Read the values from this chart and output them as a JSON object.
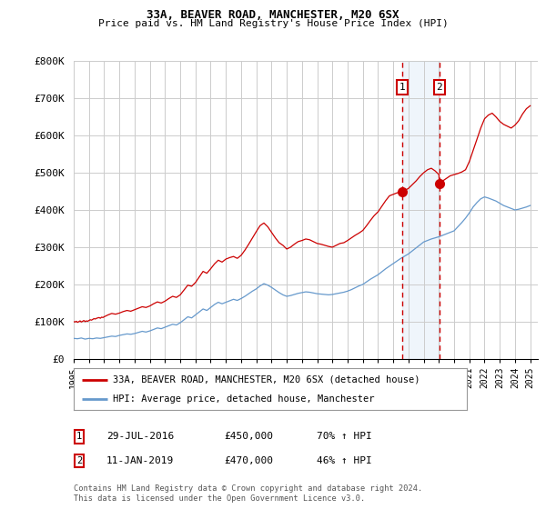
{
  "title1": "33A, BEAVER ROAD, MANCHESTER, M20 6SX",
  "title2": "Price paid vs. HM Land Registry's House Price Index (HPI)",
  "ylabel_ticks": [
    "£0",
    "£100K",
    "£200K",
    "£300K",
    "£400K",
    "£500K",
    "£600K",
    "£700K",
    "£800K"
  ],
  "ytick_values": [
    0,
    100000,
    200000,
    300000,
    400000,
    500000,
    600000,
    700000,
    800000
  ],
  "ylim": [
    0,
    800000
  ],
  "xlim_start": 1995.0,
  "xlim_end": 2025.5,
  "line1_color": "#cc0000",
  "line2_color": "#6699cc",
  "vline_color": "#cc0000",
  "vline1_x": 2016.57,
  "vline2_x": 2019.03,
  "marker1_price": 450000,
  "marker2_price": 470000,
  "label1": "33A, BEAVER ROAD, MANCHESTER, M20 6SX (detached house)",
  "label2": "HPI: Average price, detached house, Manchester",
  "trans1_num": "1",
  "trans1_date": "29-JUL-2016",
  "trans1_price": "£450,000",
  "trans1_hpi": "70% ↑ HPI",
  "trans2_num": "2",
  "trans2_date": "11-JAN-2019",
  "trans2_price": "£470,000",
  "trans2_hpi": "46% ↑ HPI",
  "footer": "Contains HM Land Registry data © Crown copyright and database right 2024.\nThis data is licensed under the Open Government Licence v3.0.",
  "bg_color": "#ffffff",
  "grid_color": "#cccccc",
  "highlight_bg": "#ddeeff",
  "red_x": [
    1995.0,
    1995.08,
    1995.17,
    1995.25,
    1995.33,
    1995.42,
    1995.5,
    1995.58,
    1995.67,
    1995.75,
    1995.83,
    1995.92,
    1996.0,
    1996.08,
    1996.17,
    1996.25,
    1996.33,
    1996.42,
    1996.5,
    1996.58,
    1996.67,
    1996.75,
    1996.83,
    1996.92,
    1997.0,
    1997.25,
    1997.5,
    1997.75,
    1998.0,
    1998.25,
    1998.5,
    1998.75,
    1999.0,
    1999.25,
    1999.5,
    1999.75,
    2000.0,
    2000.25,
    2000.5,
    2000.75,
    2001.0,
    2001.25,
    2001.5,
    2001.75,
    2002.0,
    2002.25,
    2002.5,
    2002.75,
    2003.0,
    2003.25,
    2003.5,
    2003.75,
    2004.0,
    2004.25,
    2004.5,
    2004.75,
    2005.0,
    2005.25,
    2005.5,
    2005.75,
    2006.0,
    2006.25,
    2006.5,
    2006.75,
    2007.0,
    2007.25,
    2007.5,
    2007.75,
    2008.0,
    2008.25,
    2008.5,
    2008.75,
    2009.0,
    2009.25,
    2009.5,
    2009.75,
    2010.0,
    2010.25,
    2010.5,
    2010.75,
    2011.0,
    2011.25,
    2011.5,
    2011.75,
    2012.0,
    2012.25,
    2012.5,
    2012.75,
    2013.0,
    2013.25,
    2013.5,
    2013.75,
    2014.0,
    2014.25,
    2014.5,
    2014.75,
    2015.0,
    2015.25,
    2015.5,
    2015.75,
    2016.0,
    2016.25,
    2016.5,
    2016.57,
    2016.75,
    2017.0,
    2017.25,
    2017.5,
    2017.75,
    2018.0,
    2018.25,
    2018.5,
    2018.75,
    2019.0,
    2019.03,
    2019.25,
    2019.5,
    2019.75,
    2020.0,
    2020.25,
    2020.5,
    2020.75,
    2021.0,
    2021.25,
    2021.5,
    2021.75,
    2022.0,
    2022.25,
    2022.5,
    2022.75,
    2023.0,
    2023.25,
    2023.5,
    2023.75,
    2024.0,
    2024.25,
    2024.5,
    2024.75,
    2025.0
  ],
  "red_y": [
    100000,
    99000,
    101000,
    98000,
    100000,
    102000,
    99000,
    101000,
    103000,
    100000,
    102000,
    101000,
    103000,
    105000,
    104000,
    106000,
    108000,
    107000,
    109000,
    110000,
    111000,
    109000,
    112000,
    111000,
    113000,
    118000,
    122000,
    120000,
    123000,
    127000,
    130000,
    128000,
    132000,
    136000,
    140000,
    138000,
    142000,
    148000,
    153000,
    150000,
    155000,
    162000,
    168000,
    165000,
    172000,
    185000,
    198000,
    195000,
    205000,
    220000,
    235000,
    230000,
    242000,
    255000,
    265000,
    260000,
    268000,
    272000,
    275000,
    270000,
    278000,
    292000,
    308000,
    325000,
    342000,
    358000,
    365000,
    355000,
    340000,
    325000,
    312000,
    305000,
    295000,
    300000,
    308000,
    315000,
    318000,
    322000,
    320000,
    315000,
    310000,
    308000,
    305000,
    302000,
    300000,
    305000,
    310000,
    312000,
    318000,
    325000,
    332000,
    338000,
    345000,
    358000,
    372000,
    385000,
    395000,
    410000,
    425000,
    438000,
    442000,
    446000,
    449000,
    450000,
    452000,
    458000,
    468000,
    478000,
    490000,
    500000,
    508000,
    512000,
    505000,
    495000,
    470000,
    478000,
    485000,
    492000,
    495000,
    498000,
    502000,
    508000,
    530000,
    560000,
    590000,
    620000,
    645000,
    655000,
    660000,
    650000,
    638000,
    630000,
    625000,
    620000,
    628000,
    640000,
    658000,
    672000,
    680000
  ],
  "blue_x": [
    1995.0,
    1995.25,
    1995.5,
    1995.75,
    1996.0,
    1996.25,
    1996.5,
    1996.75,
    1997.0,
    1997.25,
    1997.5,
    1997.75,
    1998.0,
    1998.25,
    1998.5,
    1998.75,
    1999.0,
    1999.25,
    1999.5,
    1999.75,
    2000.0,
    2000.25,
    2000.5,
    2000.75,
    2001.0,
    2001.25,
    2001.5,
    2001.75,
    2002.0,
    2002.25,
    2002.5,
    2002.75,
    2003.0,
    2003.25,
    2003.5,
    2003.75,
    2004.0,
    2004.25,
    2004.5,
    2004.75,
    2005.0,
    2005.25,
    2005.5,
    2005.75,
    2006.0,
    2006.25,
    2006.5,
    2006.75,
    2007.0,
    2007.25,
    2007.5,
    2007.75,
    2008.0,
    2008.25,
    2008.5,
    2008.75,
    2009.0,
    2009.25,
    2009.5,
    2009.75,
    2010.0,
    2010.25,
    2010.5,
    2010.75,
    2011.0,
    2011.25,
    2011.5,
    2011.75,
    2012.0,
    2012.25,
    2012.5,
    2012.75,
    2013.0,
    2013.25,
    2013.5,
    2013.75,
    2014.0,
    2014.25,
    2014.5,
    2014.75,
    2015.0,
    2015.25,
    2015.5,
    2015.75,
    2016.0,
    2016.25,
    2016.5,
    2016.75,
    2017.0,
    2017.25,
    2017.5,
    2017.75,
    2018.0,
    2018.25,
    2018.5,
    2018.75,
    2019.0,
    2019.25,
    2019.5,
    2019.75,
    2020.0,
    2020.25,
    2020.5,
    2020.75,
    2021.0,
    2021.25,
    2021.5,
    2021.75,
    2022.0,
    2022.25,
    2022.5,
    2022.75,
    2023.0,
    2023.25,
    2023.5,
    2023.75,
    2024.0,
    2024.25,
    2024.5,
    2024.75,
    2025.0
  ],
  "blue_y": [
    55000,
    54000,
    56000,
    53000,
    55000,
    54000,
    56000,
    55000,
    57000,
    59000,
    61000,
    60000,
    63000,
    65000,
    67000,
    66000,
    68000,
    71000,
    74000,
    72000,
    75000,
    79000,
    83000,
    81000,
    85000,
    89000,
    93000,
    91000,
    97000,
    105000,
    113000,
    110000,
    118000,
    126000,
    134000,
    130000,
    138000,
    146000,
    152000,
    148000,
    152000,
    156000,
    160000,
    157000,
    162000,
    168000,
    175000,
    182000,
    188000,
    196000,
    202000,
    198000,
    192000,
    185000,
    178000,
    172000,
    168000,
    170000,
    173000,
    176000,
    178000,
    180000,
    179000,
    177000,
    175000,
    174000,
    173000,
    172000,
    173000,
    175000,
    177000,
    179000,
    182000,
    186000,
    191000,
    196000,
    200000,
    207000,
    214000,
    220000,
    226000,
    234000,
    242000,
    249000,
    256000,
    263000,
    270000,
    276000,
    282000,
    290000,
    298000,
    306000,
    314000,
    318000,
    322000,
    325000,
    328000,
    332000,
    336000,
    340000,
    344000,
    355000,
    366000,
    378000,
    392000,
    408000,
    420000,
    430000,
    435000,
    432000,
    428000,
    424000,
    418000,
    412000,
    408000,
    404000,
    400000,
    402000,
    405000,
    408000,
    412000
  ]
}
